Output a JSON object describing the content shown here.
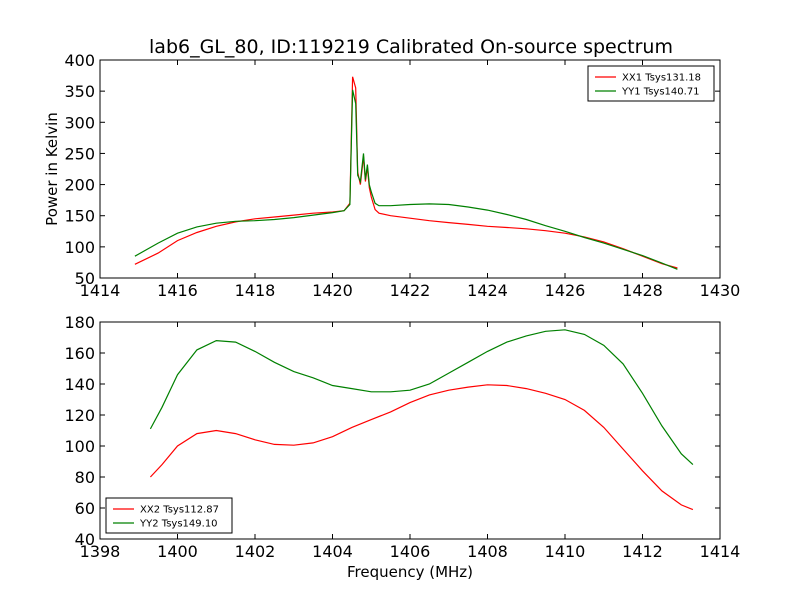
{
  "figure": {
    "title": "lab6_GL_80, ID:119219 Calibrated On-source spectrum",
    "xlabel": "Frequency (MHz)"
  },
  "colors": {
    "red": "#ff0000",
    "green": "#008000"
  },
  "chart_data": [
    {
      "type": "line",
      "title": "lab6_GL_80, ID:119219 Calibrated On-source spectrum",
      "xlabel": "",
      "ylabel": "Power in Kelvin",
      "xlim": [
        1414,
        1430
      ],
      "ylim": [
        50,
        400
      ],
      "xticks": [
        "1414",
        "1416",
        "1418",
        "1420",
        "1422",
        "1424",
        "1426",
        "1428",
        "1430"
      ],
      "yticks": [
        "50",
        "100",
        "150",
        "200",
        "250",
        "300",
        "350",
        "400"
      ],
      "grid": false,
      "legend": "top-right",
      "series": [
        {
          "name": "XX1 Tsys131.18",
          "color": "#ff0000",
          "x": [
            1414.9,
            1415.5,
            1416,
            1416.5,
            1417,
            1417.5,
            1418,
            1418.5,
            1419,
            1419.5,
            1420,
            1420.3,
            1420.45,
            1420.52,
            1420.6,
            1420.65,
            1420.72,
            1420.8,
            1420.85,
            1420.9,
            1420.95,
            1421,
            1421.1,
            1421.2,
            1421.5,
            1422,
            1422.5,
            1423,
            1423.5,
            1424,
            1424.5,
            1425,
            1425.5,
            1426,
            1426.5,
            1427,
            1427.5,
            1428,
            1428.5,
            1428.9
          ],
          "y": [
            72,
            90,
            110,
            123,
            133,
            140,
            145,
            148,
            151,
            154,
            156,
            158,
            170,
            373,
            355,
            220,
            200,
            245,
            205,
            228,
            195,
            180,
            160,
            154,
            150,
            146,
            142,
            139,
            136,
            133,
            131,
            129,
            126,
            122,
            116,
            108,
            97,
            85,
            73,
            66
          ]
        },
        {
          "name": "YY1 Tsys140.71",
          "color": "#008000",
          "x": [
            1414.9,
            1415.5,
            1416,
            1416.5,
            1417,
            1417.5,
            1418,
            1418.5,
            1419,
            1419.5,
            1420,
            1420.3,
            1420.45,
            1420.52,
            1420.6,
            1420.65,
            1420.72,
            1420.8,
            1420.85,
            1420.9,
            1420.95,
            1421,
            1421.1,
            1421.2,
            1421.5,
            1422,
            1422.5,
            1423,
            1423.5,
            1424,
            1424.5,
            1425,
            1425.5,
            1426,
            1426.5,
            1427,
            1427.5,
            1428,
            1428.5,
            1428.9
          ],
          "y": [
            85,
            106,
            122,
            132,
            138,
            141,
            142,
            144,
            147,
            151,
            155,
            158,
            168,
            352,
            330,
            215,
            205,
            250,
            208,
            232,
            200,
            188,
            170,
            166,
            166,
            168,
            169,
            168,
            164,
            159,
            152,
            144,
            134,
            125,
            115,
            106,
            96,
            86,
            74,
            64
          ]
        }
      ]
    },
    {
      "type": "line",
      "title": "",
      "xlabel": "Frequency (MHz)",
      "ylabel": "",
      "xlim": [
        1398,
        1414
      ],
      "ylim": [
        40,
        180
      ],
      "xticks": [
        "1398",
        "1400",
        "1402",
        "1404",
        "1406",
        "1408",
        "1410",
        "1412",
        "1414"
      ],
      "yticks": [
        "40",
        "60",
        "80",
        "100",
        "120",
        "140",
        "160",
        "180"
      ],
      "grid": false,
      "legend": "bottom-left",
      "series": [
        {
          "name": "XX2 Tsys112.87",
          "color": "#ff0000",
          "x": [
            1399.3,
            1399.6,
            1400,
            1400.5,
            1401,
            1401.5,
            1402,
            1402.5,
            1403,
            1403.5,
            1404,
            1404.5,
            1405,
            1405.5,
            1406,
            1406.5,
            1407,
            1407.5,
            1408,
            1408.5,
            1409,
            1409.5,
            1410,
            1410.5,
            1411,
            1411.5,
            1412,
            1412.5,
            1413,
            1413.3
          ],
          "y": [
            80,
            88,
            100,
            108,
            110,
            108,
            104,
            101,
            100.5,
            102,
            106,
            112,
            117,
            122,
            128,
            133,
            136,
            138,
            139.5,
            139,
            137,
            134,
            130,
            123,
            112,
            98,
            84,
            71,
            62,
            59
          ]
        },
        {
          "name": "YY2 Tsys149.10",
          "color": "#008000",
          "x": [
            1399.3,
            1399.6,
            1400,
            1400.5,
            1401,
            1401.5,
            1402,
            1402.5,
            1403,
            1403.5,
            1404,
            1404.5,
            1405,
            1405.5,
            1406,
            1406.5,
            1407,
            1407.5,
            1408,
            1408.5,
            1409,
            1409.5,
            1410,
            1410.5,
            1411,
            1411.5,
            1412,
            1412.5,
            1413,
            1413.3
          ],
          "y": [
            111,
            125,
            146,
            162,
            168,
            167,
            161,
            154,
            148,
            144,
            139,
            137,
            135,
            135,
            136,
            140,
            147,
            154,
            161,
            167,
            171,
            174,
            175,
            172,
            165,
            153,
            134,
            113,
            95,
            88
          ]
        }
      ]
    }
  ]
}
